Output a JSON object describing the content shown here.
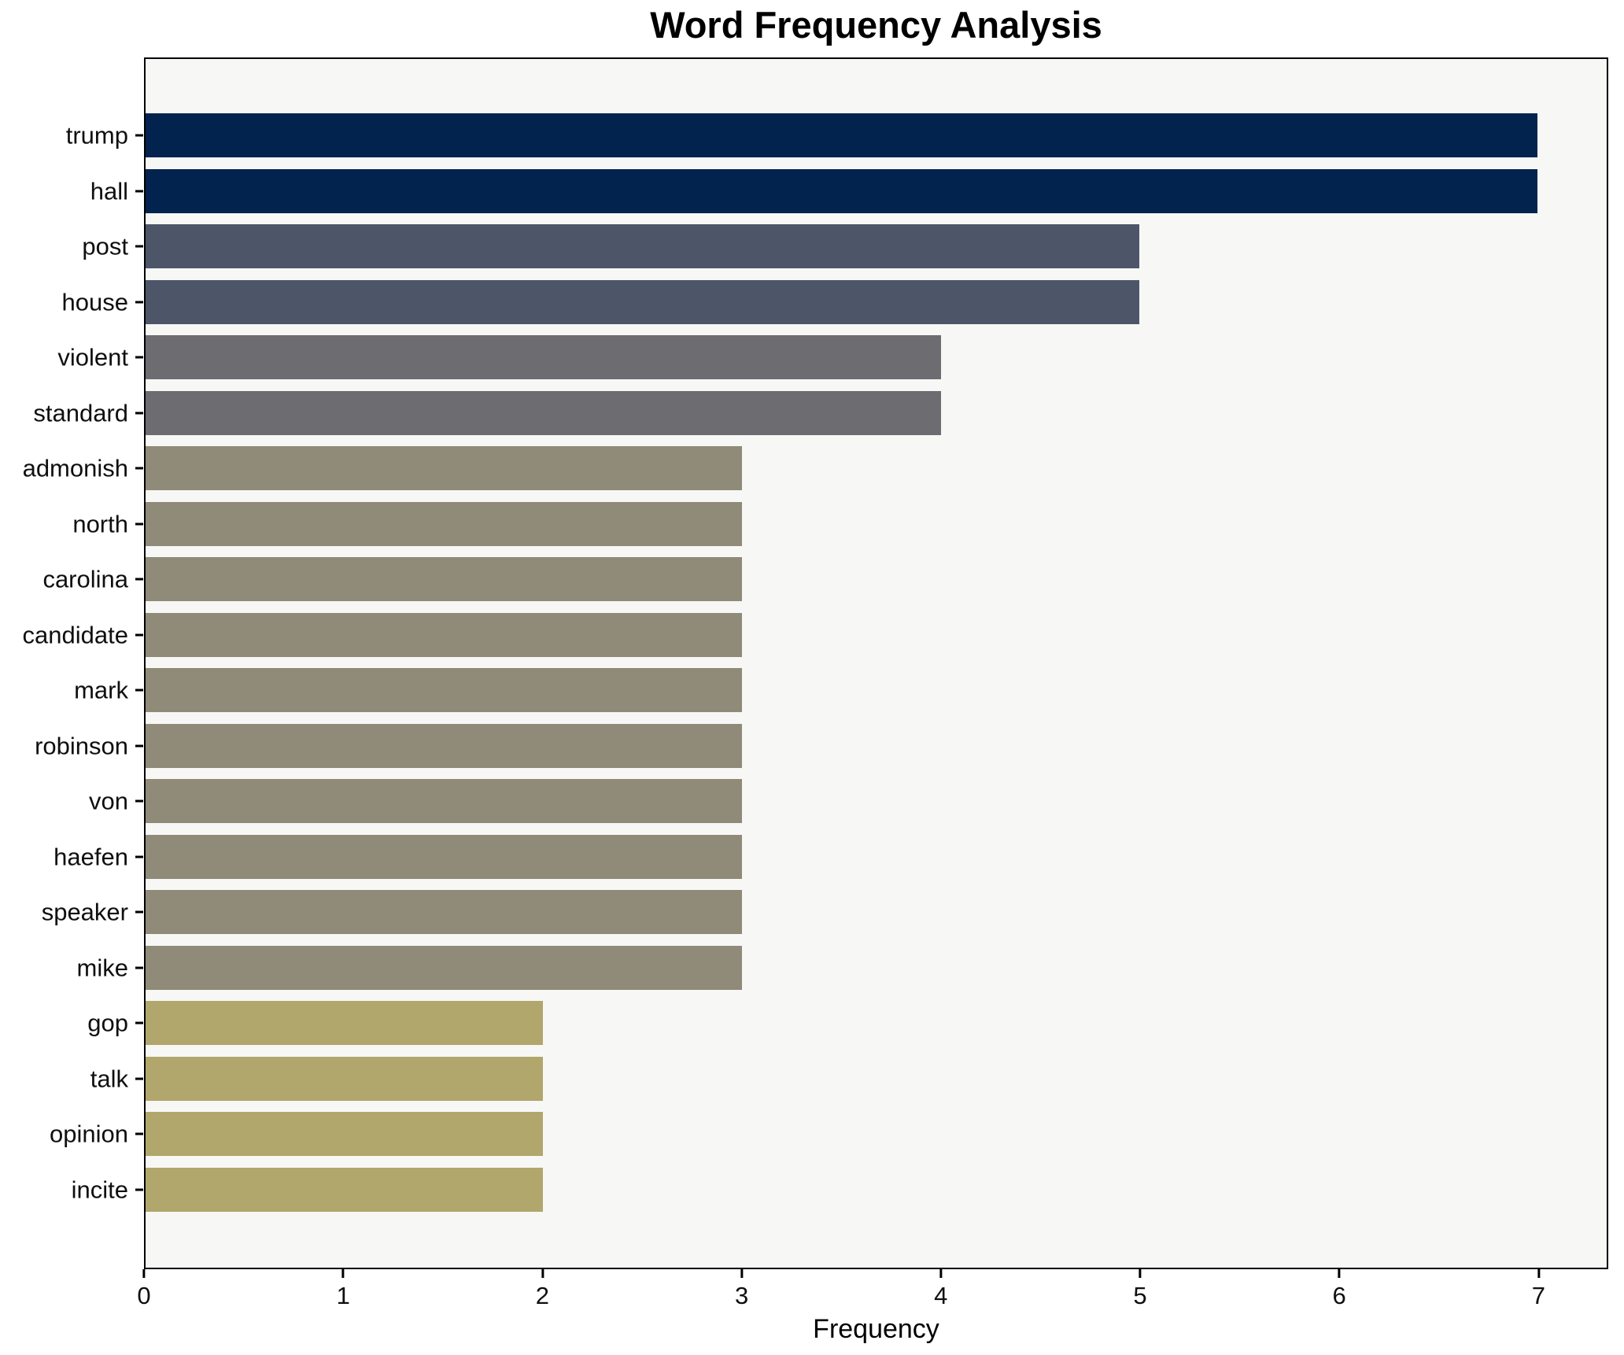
{
  "chart_data": {
    "type": "bar",
    "orientation": "horizontal",
    "title": "Word Frequency Analysis",
    "xlabel": "Frequency",
    "ylabel": "",
    "xlim": [
      0,
      7.35
    ],
    "x_ticks": [
      "0",
      "1",
      "2",
      "3",
      "4",
      "5",
      "6",
      "7"
    ],
    "grid": false,
    "legend_position": "none",
    "categories": [
      "trump",
      "hall",
      "post",
      "house",
      "violent",
      "standard",
      "admonish",
      "north",
      "carolina",
      "candidate",
      "mark",
      "robinson",
      "von",
      "haefen",
      "speaker",
      "mike",
      "gop",
      "talk",
      "opinion",
      "incite"
    ],
    "values": [
      7,
      7,
      5,
      5,
      4,
      4,
      3,
      3,
      3,
      3,
      3,
      3,
      3,
      3,
      3,
      3,
      2,
      2,
      2,
      2
    ],
    "value_colors": {
      "7": "#02234e",
      "5": "#4d5569",
      "4": "#6c6c71",
      "3": "#8f8b78",
      "2": "#b1a66c"
    },
    "plot_background": "#f7f7f6",
    "figure_background": "#ffffff",
    "spine_color": "#000000"
  }
}
